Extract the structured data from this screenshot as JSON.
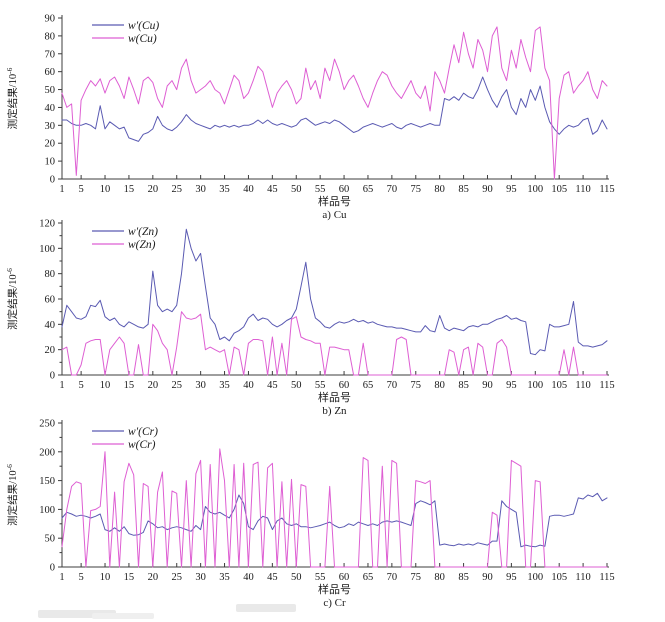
{
  "figure": {
    "background": "#ffffff",
    "axis_color": "#3c3c3c",
    "text_color": "#1a1a1a"
  },
  "chart_data": [
    {
      "type": "line",
      "panel": "cu",
      "caption": "a) Cu",
      "xlabel": "样品号",
      "ylabel": "测定结果/10⁻⁶",
      "ylabel_base": "测定结果/10",
      "ylabel_sup": "-6",
      "xlim": [
        1,
        115
      ],
      "ylim": [
        0,
        90
      ],
      "yticks": [
        0,
        10,
        20,
        30,
        40,
        50,
        60,
        70,
        80,
        90
      ],
      "ytick_minor_step": 0,
      "xticks": [
        1,
        5,
        10,
        15,
        20,
        25,
        30,
        35,
        40,
        45,
        50,
        55,
        60,
        65,
        70,
        75,
        80,
        85,
        90,
        95,
        100,
        105,
        110,
        115
      ],
      "legend_position": "top-left",
      "grid": false,
      "series": [
        {
          "name": "w′(Cu)",
          "color": "#5a5ab2",
          "values": [
            33,
            33,
            31,
            30,
            30,
            31,
            30,
            28,
            41,
            28,
            32,
            30,
            28,
            29,
            23,
            22,
            21,
            25,
            26,
            28,
            35,
            30,
            28,
            27,
            29,
            32,
            36,
            33,
            31,
            30,
            29,
            28,
            30,
            29,
            30,
            29,
            30,
            29,
            30,
            30,
            31,
            33,
            31,
            33,
            31,
            30,
            31,
            30,
            29,
            30,
            33,
            34,
            32,
            30,
            31,
            32,
            31,
            33,
            32,
            30,
            28,
            26,
            27,
            29,
            30,
            31,
            30,
            29,
            30,
            31,
            29,
            28,
            30,
            31,
            30,
            29,
            30,
            31,
            30,
            30,
            45,
            44,
            46,
            44,
            48,
            46,
            45,
            50,
            57,
            50,
            44,
            40,
            46,
            50,
            40,
            36,
            45,
            40,
            50,
            44,
            52,
            40,
            32,
            28,
            25,
            28,
            30,
            29,
            30,
            33,
            34,
            25,
            27,
            33,
            28
          ]
        },
        {
          "name": "w(Cu)",
          "color": "#de5fd3",
          "values": [
            48,
            40,
            42,
            2,
            44,
            50,
            55,
            52,
            56,
            48,
            55,
            57,
            52,
            45,
            57,
            50,
            42,
            55,
            57,
            54,
            45,
            40,
            52,
            55,
            50,
            62,
            67,
            55,
            48,
            50,
            52,
            55,
            50,
            48,
            42,
            50,
            58,
            55,
            45,
            48,
            55,
            63,
            60,
            50,
            40,
            48,
            52,
            55,
            50,
            42,
            45,
            62,
            50,
            55,
            45,
            62,
            55,
            67,
            60,
            50,
            55,
            58,
            52,
            45,
            40,
            48,
            55,
            60,
            58,
            52,
            48,
            45,
            50,
            55,
            48,
            45,
            52,
            38,
            60,
            55,
            48,
            62,
            75,
            65,
            82,
            70,
            62,
            78,
            72,
            60,
            80,
            85,
            62,
            55,
            72,
            62,
            78,
            68,
            60,
            83,
            85,
            62,
            55,
            0,
            45,
            58,
            60,
            48,
            52,
            55,
            60,
            50,
            45,
            55,
            52
          ]
        }
      ]
    },
    {
      "type": "line",
      "panel": "zn",
      "caption": "b) Zn",
      "xlabel": "样品号",
      "ylabel": "测定结果/10⁻⁶",
      "ylabel_base": "测定结果/10",
      "ylabel_sup": "-6",
      "xlim": [
        1,
        115
      ],
      "ylim": [
        0,
        120
      ],
      "yticks": [
        0,
        20,
        40,
        60,
        80,
        100,
        120
      ],
      "ytick_minor_step": 10,
      "xticks": [
        1,
        5,
        10,
        15,
        20,
        25,
        30,
        35,
        40,
        45,
        50,
        55,
        60,
        65,
        70,
        75,
        80,
        85,
        90,
        95,
        100,
        105,
        110,
        115
      ],
      "legend_position": "top-left",
      "grid": false,
      "series": [
        {
          "name": "w′(Zn)",
          "color": "#5a5ab2",
          "values": [
            38,
            55,
            50,
            45,
            44,
            46,
            55,
            54,
            59,
            46,
            43,
            45,
            40,
            38,
            42,
            40,
            38,
            37,
            40,
            82,
            55,
            50,
            52,
            50,
            55,
            80,
            115,
            100,
            90,
            96,
            70,
            45,
            40,
            28,
            30,
            27,
            33,
            35,
            38,
            45,
            48,
            43,
            45,
            44,
            40,
            38,
            40,
            43,
            45,
            52,
            70,
            89,
            60,
            45,
            42,
            38,
            37,
            40,
            42,
            41,
            42,
            44,
            42,
            43,
            41,
            42,
            40,
            39,
            38,
            38,
            37,
            37,
            36,
            35,
            34,
            34,
            39,
            35,
            34,
            47,
            37,
            35,
            37,
            36,
            35,
            38,
            39,
            38,
            40,
            40,
            42,
            44,
            45,
            47,
            44,
            45,
            43,
            42,
            17,
            16,
            20,
            19,
            40,
            38,
            38,
            39,
            40,
            58,
            26,
            23,
            23,
            22,
            23,
            24,
            27
          ]
        },
        {
          "name": "w(Zn)",
          "color": "#de5fd3",
          "values": [
            20,
            22,
            0,
            0,
            8,
            25,
            27,
            28,
            28,
            0,
            20,
            25,
            30,
            25,
            0,
            0,
            24,
            0,
            0,
            40,
            35,
            25,
            20,
            0,
            22,
            50,
            45,
            44,
            45,
            48,
            20,
            22,
            20,
            18,
            20,
            0,
            22,
            20,
            0,
            25,
            28,
            28,
            27,
            0,
            30,
            0,
            25,
            0,
            44,
            46,
            30,
            28,
            27,
            25,
            25,
            0,
            22,
            22,
            21,
            20,
            20,
            0,
            0,
            25,
            0,
            0,
            0,
            0,
            0,
            0,
            28,
            30,
            28,
            0,
            0,
            0,
            0,
            0,
            0,
            0,
            0,
            20,
            18,
            0,
            20,
            22,
            0,
            25,
            22,
            0,
            0,
            25,
            28,
            22,
            0,
            0,
            0,
            0,
            0,
            0,
            0,
            0,
            0,
            0,
            0,
            20,
            0,
            22,
            0,
            0,
            0,
            0,
            0,
            0,
            0
          ]
        }
      ]
    },
    {
      "type": "line",
      "panel": "cr",
      "caption": "c) Cr",
      "xlabel": "样品号",
      "ylabel": "测定结果/10⁻⁶",
      "ylabel_base": "测定结果/10",
      "ylabel_sup": "-6",
      "xlim": [
        1,
        115
      ],
      "ylim": [
        0,
        250
      ],
      "yticks": [
        0,
        50,
        100,
        150,
        200,
        250
      ],
      "ytick_minor_step": 25,
      "xticks": [
        1,
        5,
        10,
        15,
        20,
        25,
        30,
        35,
        40,
        45,
        50,
        55,
        60,
        65,
        70,
        75,
        80,
        85,
        90,
        95,
        100,
        105,
        110,
        115
      ],
      "legend_position": "top-left",
      "grid": false,
      "series": [
        {
          "name": "w′(Cr)",
          "color": "#5a5ab2",
          "values": [
            85,
            95,
            92,
            88,
            90,
            88,
            85,
            88,
            92,
            65,
            62,
            68,
            62,
            70,
            58,
            55,
            56,
            60,
            80,
            75,
            68,
            70,
            65,
            68,
            70,
            68,
            65,
            62,
            72,
            65,
            105,
            95,
            92,
            95,
            90,
            85,
            100,
            125,
            110,
            70,
            65,
            80,
            88,
            85,
            65,
            80,
            85,
            75,
            72,
            75,
            70,
            70,
            68,
            70,
            72,
            75,
            78,
            72,
            68,
            70,
            75,
            72,
            78,
            75,
            72,
            75,
            72,
            78,
            80,
            78,
            80,
            78,
            75,
            72,
            110,
            115,
            112,
            108,
            115,
            38,
            40,
            38,
            37,
            40,
            38,
            40,
            38,
            42,
            40,
            38,
            45,
            45,
            115,
            105,
            100,
            95,
            35,
            38,
            36,
            35,
            38,
            36,
            88,
            90,
            90,
            88,
            90,
            92,
            120,
            118,
            125,
            122,
            128,
            115,
            120
          ]
        },
        {
          "name": "w(Cr)",
          "color": "#de5fd3",
          "values": [
            35,
            100,
            140,
            148,
            145,
            0,
            98,
            100,
            105,
            200,
            0,
            130,
            0,
            148,
            180,
            160,
            0,
            145,
            140,
            0,
            130,
            165,
            0,
            132,
            128,
            0,
            150,
            0,
            162,
            185,
            0,
            178,
            0,
            205,
            150,
            0,
            178,
            0,
            180,
            0,
            178,
            182,
            0,
            172,
            180,
            0,
            148,
            0,
            152,
            0,
            143,
            140,
            0,
            0,
            0,
            0,
            140,
            0,
            0,
            0,
            0,
            0,
            0,
            190,
            185,
            0,
            0,
            175,
            0,
            185,
            180,
            0,
            0,
            0,
            150,
            148,
            145,
            150,
            0,
            0,
            0,
            0,
            0,
            0,
            0,
            0,
            0,
            0,
            0,
            0,
            95,
            90,
            0,
            0,
            185,
            180,
            175,
            0,
            0,
            150,
            148,
            0,
            0,
            0,
            0,
            0,
            0,
            0,
            0,
            0,
            0,
            0,
            0,
            0,
            0
          ]
        }
      ]
    }
  ]
}
